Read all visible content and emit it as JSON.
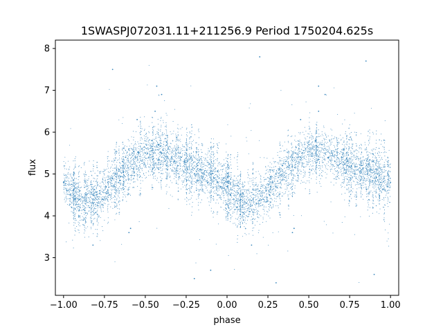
{
  "chart_data": {
    "type": "scatter",
    "title": "1SWASPJ072031.11+211256.9 Period 1750204.625s",
    "xlabel": "phase",
    "ylabel": "flux",
    "xlim": [
      -1.05,
      1.05
    ],
    "ylim": [
      2.1,
      8.2
    ],
    "grid": false,
    "marker_color": "#1f77b4",
    "x_ticks": [
      -1.0,
      -0.75,
      -0.5,
      -0.25,
      0.0,
      0.25,
      0.5,
      0.75,
      1.0
    ],
    "x_tick_labels": [
      "−1.00",
      "−0.75",
      "−0.50",
      "−0.25",
      "0.00",
      "0.25",
      "0.50",
      "0.75",
      "1.00"
    ],
    "y_ticks": [
      3,
      4,
      5,
      6,
      7,
      8
    ],
    "y_tick_labels": [
      "3",
      "4",
      "5",
      "6",
      "7",
      "8"
    ],
    "trend": {
      "phase": [
        -1.0,
        -0.9,
        -0.8,
        -0.7,
        -0.6,
        -0.5,
        -0.4,
        -0.3,
        -0.2,
        -0.1,
        0.0,
        0.1,
        0.2,
        0.3,
        0.4,
        0.5,
        0.6,
        0.7,
        0.8,
        0.9,
        1.0
      ],
      "flux": [
        4.8,
        4.4,
        4.4,
        4.8,
        5.2,
        5.5,
        5.5,
        5.3,
        5.1,
        5.0,
        4.7,
        4.3,
        4.4,
        4.8,
        5.2,
        5.5,
        5.5,
        5.3,
        5.1,
        5.0,
        4.8
      ]
    },
    "series": [
      {
        "values": [
          [
            -1.0,
            4.8
          ],
          [
            -0.98,
            4.6
          ],
          [
            -0.96,
            4.5
          ],
          [
            -0.95,
            4.2
          ],
          [
            -0.93,
            4.4
          ],
          [
            -0.9,
            4.6
          ],
          [
            -0.88,
            3.9
          ],
          [
            -0.86,
            4.5
          ],
          [
            -0.84,
            4.2
          ],
          [
            -0.82,
            4.3
          ],
          [
            -0.8,
            4.5
          ],
          [
            -0.78,
            4.6
          ],
          [
            -0.76,
            4.4
          ],
          [
            -0.74,
            4.7
          ],
          [
            -0.72,
            4.5
          ],
          [
            -0.7,
            4.9
          ],
          [
            -0.68,
            5.0
          ],
          [
            -0.66,
            5.1
          ],
          [
            -0.64,
            5.3
          ],
          [
            -0.62,
            5.4
          ],
          [
            -0.6,
            5.6
          ],
          [
            -0.58,
            5.5
          ],
          [
            -0.56,
            5.4
          ],
          [
            -0.54,
            5.5
          ],
          [
            -0.52,
            5.6
          ],
          [
            -0.5,
            5.5
          ],
          [
            -0.48,
            5.4
          ],
          [
            -0.46,
            5.8
          ],
          [
            -0.44,
            6.5
          ],
          [
            -0.42,
            5.7
          ],
          [
            -0.4,
            5.5
          ],
          [
            -0.38,
            5.3
          ],
          [
            -0.36,
            5.6
          ],
          [
            -0.34,
            5.4
          ],
          [
            -0.32,
            5.3
          ],
          [
            -0.3,
            5.2
          ],
          [
            -0.28,
            5.4
          ],
          [
            -0.26,
            5.3
          ],
          [
            -0.24,
            5.1
          ],
          [
            -0.22,
            5.4
          ],
          [
            -0.2,
            5.0
          ],
          [
            -0.18,
            5.2
          ],
          [
            -0.16,
            5.1
          ],
          [
            -0.14,
            5.0
          ],
          [
            -0.12,
            4.8
          ],
          [
            -0.1,
            5.0
          ],
          [
            -0.08,
            4.9
          ],
          [
            -0.06,
            4.8
          ],
          [
            -0.04,
            4.7
          ],
          [
            -0.02,
            4.9
          ],
          [
            0.0,
            4.7
          ],
          [
            0.02,
            4.5
          ],
          [
            0.04,
            4.4
          ],
          [
            0.06,
            4.2
          ],
          [
            0.08,
            4.5
          ],
          [
            0.1,
            3.9
          ],
          [
            0.12,
            4.3
          ],
          [
            0.14,
            4.1
          ],
          [
            0.16,
            4.4
          ],
          [
            0.18,
            4.3
          ],
          [
            0.2,
            4.6
          ],
          [
            0.22,
            4.4
          ],
          [
            0.24,
            4.6
          ],
          [
            0.26,
            4.5
          ],
          [
            0.28,
            4.8
          ],
          [
            0.3,
            5.0
          ],
          [
            0.32,
            5.1
          ],
          [
            0.34,
            5.2
          ],
          [
            0.36,
            5.3
          ],
          [
            0.38,
            5.2
          ],
          [
            0.4,
            5.4
          ],
          [
            0.42,
            5.5
          ],
          [
            0.44,
            5.6
          ],
          [
            0.46,
            5.5
          ],
          [
            0.48,
            5.6
          ],
          [
            0.5,
            5.7
          ],
          [
            0.52,
            5.5
          ],
          [
            0.54,
            5.8
          ],
          [
            0.56,
            6.5
          ],
          [
            0.58,
            5.7
          ],
          [
            0.6,
            5.5
          ],
          [
            0.62,
            5.4
          ],
          [
            0.64,
            5.5
          ],
          [
            0.66,
            5.3
          ],
          [
            0.68,
            5.2
          ],
          [
            0.7,
            5.4
          ],
          [
            0.72,
            5.1
          ],
          [
            0.74,
            5.3
          ],
          [
            0.76,
            5.2
          ],
          [
            0.78,
            5.0
          ],
          [
            0.8,
            5.1
          ],
          [
            0.82,
            5.2
          ],
          [
            0.84,
            4.9
          ],
          [
            0.86,
            5.0
          ],
          [
            0.88,
            5.1
          ],
          [
            0.9,
            4.9
          ],
          [
            0.92,
            5.0
          ],
          [
            0.94,
            4.8
          ],
          [
            0.96,
            4.9
          ],
          [
            0.98,
            4.7
          ],
          [
            1.0,
            4.8
          ],
          [
            -0.6,
            3.6
          ],
          [
            -0.59,
            3.7
          ],
          [
            0.4,
            3.6
          ],
          [
            0.41,
            3.7
          ],
          [
            -0.43,
            7.1
          ],
          [
            0.56,
            7.1
          ],
          [
            -0.55,
            6.3
          ],
          [
            0.45,
            6.3
          ],
          [
            -0.82,
            3.3
          ],
          [
            0.15,
            3.3
          ],
          [
            -0.1,
            2.7
          ],
          [
            0.9,
            2.6
          ],
          [
            -0.2,
            2.5
          ],
          [
            0.3,
            2.4
          ],
          [
            -0.7,
            7.5
          ],
          [
            0.2,
            7.8
          ],
          [
            0.85,
            7.7
          ],
          [
            -0.4,
            6.9
          ],
          [
            0.6,
            6.9
          ]
        ]
      }
    ]
  }
}
